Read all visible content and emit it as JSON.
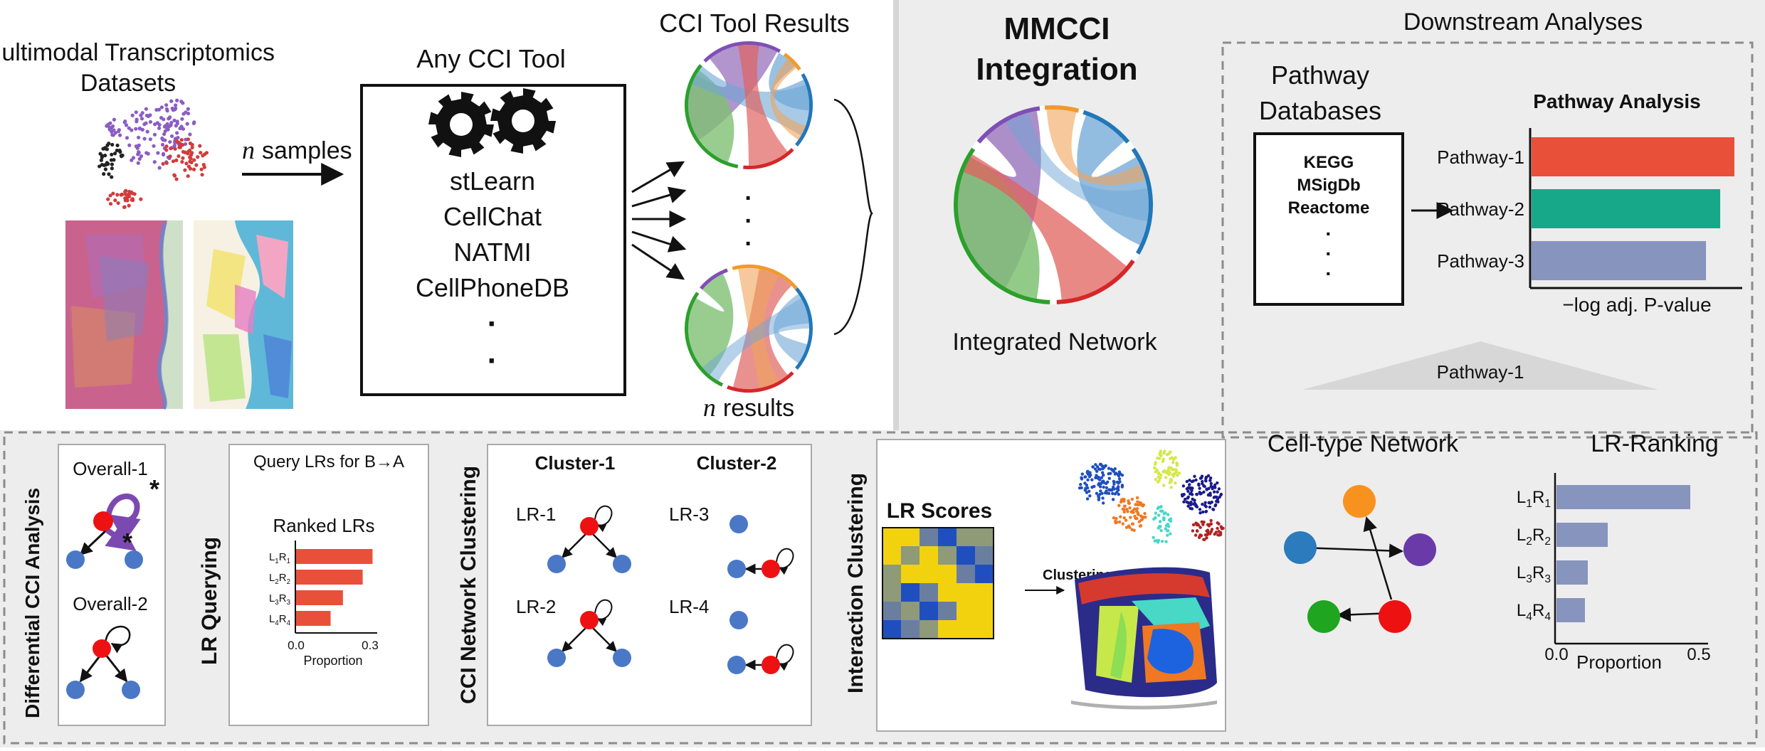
{
  "colors": {
    "panel_gray": "#ededed",
    "dash": "#8c8c8c",
    "purple": "#9e7bbf",
    "green": "#7fc173",
    "blue": "#6ea6d6",
    "red": "#e0625e",
    "orange": "#f0a35a",
    "node_red": "#ee1111",
    "node_blue": "#4a78c6",
    "node_orange": "#f8921e",
    "node_purple": "#6a3ba8",
    "node_green": "#1fa51f",
    "node_steel": "#2b7bbd",
    "bar_red": "#e8503a",
    "bar_teal": "#17a789",
    "bar_slate": "#8794be"
  },
  "datasets": {
    "title_line1": "Multimodal Transcriptomics",
    "title_line2": "Datasets",
    "samples_var": "n",
    "samples_label": "samples"
  },
  "tool": {
    "title": "Any CCI Tool",
    "icon": "gears-icon",
    "items": [
      "stLearn",
      "CellChat",
      "NATMI",
      "CellPhoneDB"
    ],
    "dots": [
      "·",
      "·"
    ]
  },
  "results": {
    "title": "CCI Tool Results",
    "dots": [
      "·",
      "·",
      "·"
    ],
    "footer_var": "n",
    "footer_label": "results"
  },
  "integration": {
    "title_line1": "MMCCI",
    "title_line2": "Integration",
    "caption": "Integrated Network"
  },
  "downstream": {
    "title": "Downstream Analyses",
    "db_title_line1": "Pathway",
    "db_title_line2": "Databases",
    "databases": [
      "KEGG",
      "MSigDb",
      "Reactome"
    ],
    "db_dots": [
      "·",
      "·",
      "·"
    ],
    "pathway_title": "Pathway Analysis",
    "pathway_axis": "−log adj. P-value",
    "pathway_selected": "Pathway-1",
    "celltype_title": "Cell-type Network",
    "ranking_title": "LR-Ranking",
    "ranking_axis": "Proportion"
  },
  "bottom": {
    "diff": {
      "title": "Differential CCI Analysis",
      "overall1": "Overall-1",
      "overall2": "Overall-2",
      "star": "*"
    },
    "query": {
      "title": "LR Querying",
      "subtitle": "Query LRs for B→A",
      "ranked": "Ranked LRs",
      "axis": "Proportion"
    },
    "clustering": {
      "title": "CCI Network Clustering",
      "cluster1": "Cluster-1",
      "cluster2": "Cluster-2",
      "lr": [
        "LR-1",
        "LR-2",
        "LR-3",
        "LR-4"
      ]
    },
    "interaction": {
      "title": "Interaction Clustering",
      "scores": "LR Scores",
      "arrow_label": "Clustering"
    }
  },
  "chart_data": [
    {
      "type": "bar",
      "title": "Pathway Analysis",
      "xlabel": "−log adj. P-value",
      "categories": [
        "Pathway-1",
        "Pathway-2",
        "Pathway-3"
      ],
      "values": [
        1.0,
        0.93,
        0.86
      ],
      "colors": [
        "#e8503a",
        "#17a789",
        "#8794be"
      ]
    },
    {
      "type": "bar",
      "title": "LR-Ranking",
      "xlabel": "Proportion",
      "categories": [
        "L1R1",
        "L2R2",
        "L3R3",
        "L4R4"
      ],
      "values": [
        0.47,
        0.18,
        0.11,
        0.1
      ],
      "xlim": [
        0,
        0.5
      ],
      "xticks": [
        "0.0",
        "0.5"
      ]
    },
    {
      "type": "bar",
      "title": "Query LRs for B→A",
      "subtitle": "Ranked LRs",
      "xlabel": "Proportion",
      "categories": [
        "L1R1",
        "L2R2",
        "L3R3",
        "L4R4"
      ],
      "values": [
        0.31,
        0.27,
        0.19,
        0.14
      ],
      "xlim": [
        0,
        0.3
      ],
      "xticks": [
        "0.0",
        "0.3"
      ]
    },
    {
      "type": "heatmap",
      "title": "LR Scores",
      "values": [
        [
          1,
          1,
          3,
          0,
          2,
          2
        ],
        [
          1,
          2,
          1,
          2,
          0,
          3
        ],
        [
          2,
          1,
          1,
          1,
          3,
          0
        ],
        [
          2,
          0,
          3,
          1,
          1,
          1
        ],
        [
          3,
          2,
          0,
          3,
          1,
          1
        ],
        [
          0,
          3,
          2,
          1,
          1,
          1
        ]
      ],
      "palette": [
        "#1f4fbf",
        "#f2d20f",
        "#8e9a78",
        "#6a7fa0"
      ]
    }
  ]
}
